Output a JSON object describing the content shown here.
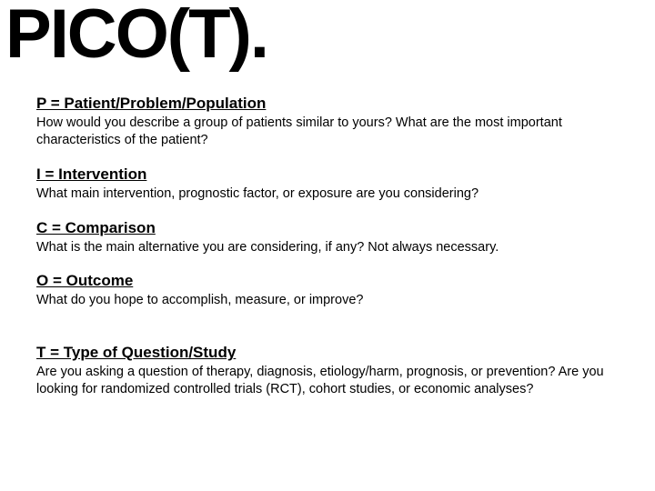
{
  "title": "PICO(T).",
  "sections": [
    {
      "heading": "P = Patient/Problem/Population",
      "body": "How would you describe a group of patients similar to yours? What are the most important characteristics of the patient?",
      "gap_before": false
    },
    {
      "heading": "I = Intervention",
      "body": "What main intervention, prognostic factor, or exposure are you considering?",
      "gap_before": false
    },
    {
      "heading": "C = Comparison",
      "body": "What is the main alternative you are considering, if any? Not always necessary.",
      "gap_before": false
    },
    {
      "heading": "O = Outcome",
      "body": "What do you hope to accomplish, measure, or improve?",
      "gap_before": false
    },
    {
      "heading": "T = Type of Question/Study",
      "body": "Are you asking a question of therapy, diagnosis, etiology/harm, prognosis, or prevention? Are you looking for randomized controlled trials (RCT), cohort studies, or economic analyses?",
      "gap_before": true
    }
  ],
  "styling": {
    "background_color": "#ffffff",
    "text_color": "#000000",
    "title_fontsize": 76,
    "title_fontweight": 900,
    "heading_fontsize": 17,
    "body_fontsize": 14.5,
    "font_family": "Arial"
  }
}
